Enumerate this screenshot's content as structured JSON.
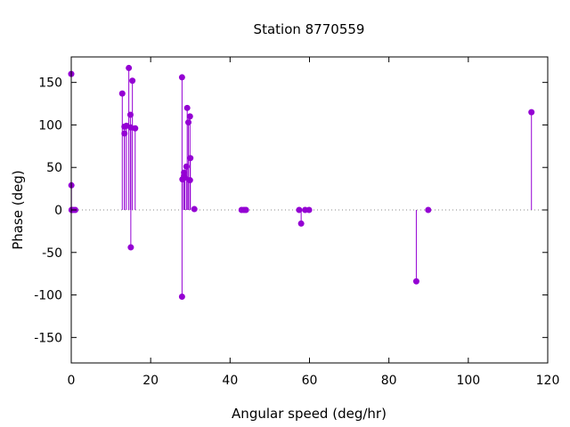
{
  "chart_data": {
    "type": "scatter",
    "title": "Station 8770559",
    "xlabel": "Angular speed (deg/hr)",
    "ylabel": "Phase (deg)",
    "xlim": [
      0,
      120
    ],
    "ylim": [
      -180,
      180
    ],
    "xticks": [
      0,
      20,
      40,
      60,
      80,
      100,
      120
    ],
    "yticks": [
      -150,
      -100,
      -50,
      0,
      50,
      100,
      150
    ],
    "grid": false,
    "legend": "none",
    "series_color": "#9400d3",
    "zero_line": true,
    "points": [
      {
        "x": 0.0,
        "y": 160
      },
      {
        "x": 0.04,
        "y": 29
      },
      {
        "x": 0.08,
        "y": 0
      },
      {
        "x": 0.5,
        "y": 0
      },
      {
        "x": 1.0,
        "y": 0
      },
      {
        "x": 12.85,
        "y": 137
      },
      {
        "x": 13.4,
        "y": 98
      },
      {
        "x": 13.4,
        "y": 90
      },
      {
        "x": 13.9,
        "y": 99
      },
      {
        "x": 14.5,
        "y": 167
      },
      {
        "x": 14.9,
        "y": 112
      },
      {
        "x": 15.0,
        "y": -44
      },
      {
        "x": 15.0,
        "y": 97
      },
      {
        "x": 15.4,
        "y": 152
      },
      {
        "x": 16.1,
        "y": 96
      },
      {
        "x": 27.9,
        "y": 156
      },
      {
        "x": 27.9,
        "y": -102
      },
      {
        "x": 28.0,
        "y": 36
      },
      {
        "x": 28.4,
        "y": 44
      },
      {
        "x": 28.4,
        "y": 40
      },
      {
        "x": 28.6,
        "y": 38
      },
      {
        "x": 29.0,
        "y": 51
      },
      {
        "x": 29.2,
        "y": 120
      },
      {
        "x": 29.5,
        "y": 103
      },
      {
        "x": 29.9,
        "y": 110
      },
      {
        "x": 29.9,
        "y": 35
      },
      {
        "x": 30.0,
        "y": 61
      },
      {
        "x": 31.0,
        "y": 1
      },
      {
        "x": 42.9,
        "y": 0
      },
      {
        "x": 43.5,
        "y": 0
      },
      {
        "x": 44.0,
        "y": 0
      },
      {
        "x": 57.4,
        "y": 0
      },
      {
        "x": 57.9,
        "y": -16
      },
      {
        "x": 58.9,
        "y": 0
      },
      {
        "x": 59.9,
        "y": 0
      },
      {
        "x": 86.9,
        "y": -84
      },
      {
        "x": 89.9,
        "y": 0
      },
      {
        "x": 115.9,
        "y": 115
      }
    ]
  }
}
